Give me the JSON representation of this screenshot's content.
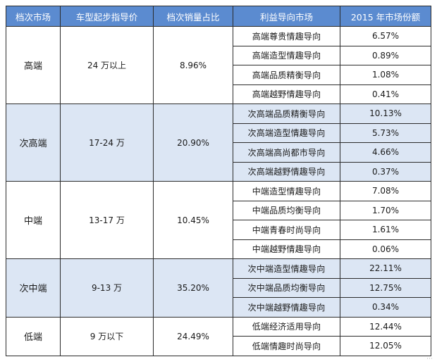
{
  "table": {
    "headers": [
      "档次市场",
      "车型起步指导价",
      "档次销量占比",
      "利益导向市场",
      "2015 年市场份额"
    ],
    "groups": [
      {
        "tier": "高端",
        "price": "24 万以上",
        "share": "8.96%",
        "shaded": false,
        "rows": [
          {
            "orientation": "高端尊贵情趣导向",
            "market_share": "6.57%"
          },
          {
            "orientation": "高端造型情趣导向",
            "market_share": "0.89%"
          },
          {
            "orientation": "高端品质精衡导向",
            "market_share": "1.08%"
          },
          {
            "orientation": "高端越野情趣导向",
            "market_share": "0.41%"
          }
        ]
      },
      {
        "tier": "次高端",
        "price": "17-24 万",
        "share": "20.90%",
        "shaded": true,
        "rows": [
          {
            "orientation": "次高端品质精衡导向",
            "market_share": "10.13%"
          },
          {
            "orientation": "次高端造型情趣导向",
            "market_share": "5.73%"
          },
          {
            "orientation": "次高端高尚都市导向",
            "market_share": "4.66%"
          },
          {
            "orientation": "次高端越野情趣导向",
            "market_share": "0.37%"
          }
        ]
      },
      {
        "tier": "中端",
        "price": "13-17 万",
        "share": "10.45%",
        "shaded": false,
        "rows": [
          {
            "orientation": "中端造型情趣导向",
            "market_share": "7.08%"
          },
          {
            "orientation": "中端品质均衡导向",
            "market_share": "1.70%"
          },
          {
            "orientation": "中端青春时尚导向",
            "market_share": "1.61%"
          },
          {
            "orientation": "中端越野情趣导向",
            "market_share": "0.06%"
          }
        ]
      },
      {
        "tier": "次中端",
        "price": "9-13 万",
        "share": "35.20%",
        "shaded": true,
        "rows": [
          {
            "orientation": "次中端造型情趣导向",
            "market_share": "22.11%"
          },
          {
            "orientation": "次中端品质均衡导向",
            "market_share": "12.75%"
          },
          {
            "orientation": "次中端越野情趣导向",
            "market_share": "0.34%"
          }
        ]
      },
      {
        "tier": "低端",
        "price": "9 万以下",
        "share": "24.49%",
        "shaded": false,
        "rows": [
          {
            "orientation": "低端经济适用导向",
            "market_share": "12.44%"
          },
          {
            "orientation": "低端情趣时尚导向",
            "market_share": "12.05%"
          }
        ]
      }
    ]
  },
  "colors": {
    "header_bg": "#5b8bd0",
    "shaded_bg": "#dce6f4",
    "border": "#2b2b2b"
  }
}
